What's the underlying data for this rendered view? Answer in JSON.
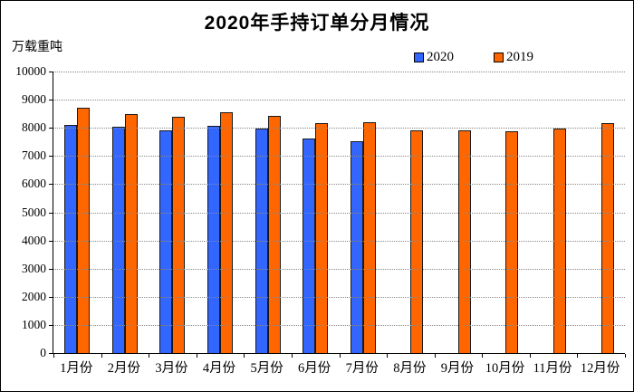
{
  "chart_data": {
    "type": "bar",
    "title": "2020年手持订单分月情况",
    "ylabel": "万载重吨",
    "xlabel": "",
    "categories": [
      "1月份",
      "2月份",
      "3月份",
      "4月份",
      "5月份",
      "6月份",
      "7月份",
      "8月份",
      "9月份",
      "10月份",
      "11月份",
      "12月份"
    ],
    "series": [
      {
        "name": "2020",
        "color": "#3366FF",
        "values": [
          8100,
          8030,
          7920,
          8060,
          7970,
          7610,
          7540,
          null,
          null,
          null,
          null,
          null
        ]
      },
      {
        "name": "2019",
        "color": "#FF6600",
        "values": [
          8720,
          8490,
          8400,
          8540,
          8430,
          8170,
          8200,
          7900,
          7920,
          7870,
          7980,
          8160
        ]
      }
    ],
    "ylim": [
      0,
      10000
    ],
    "yticks": [
      0,
      1000,
      2000,
      3000,
      4000,
      5000,
      6000,
      7000,
      8000,
      9000,
      10000
    ],
    "grid": "horizontal-dotted",
    "legend_position": "top-right",
    "bar_border_color": "#1a1a1a",
    "gridline_color": "#888888"
  }
}
